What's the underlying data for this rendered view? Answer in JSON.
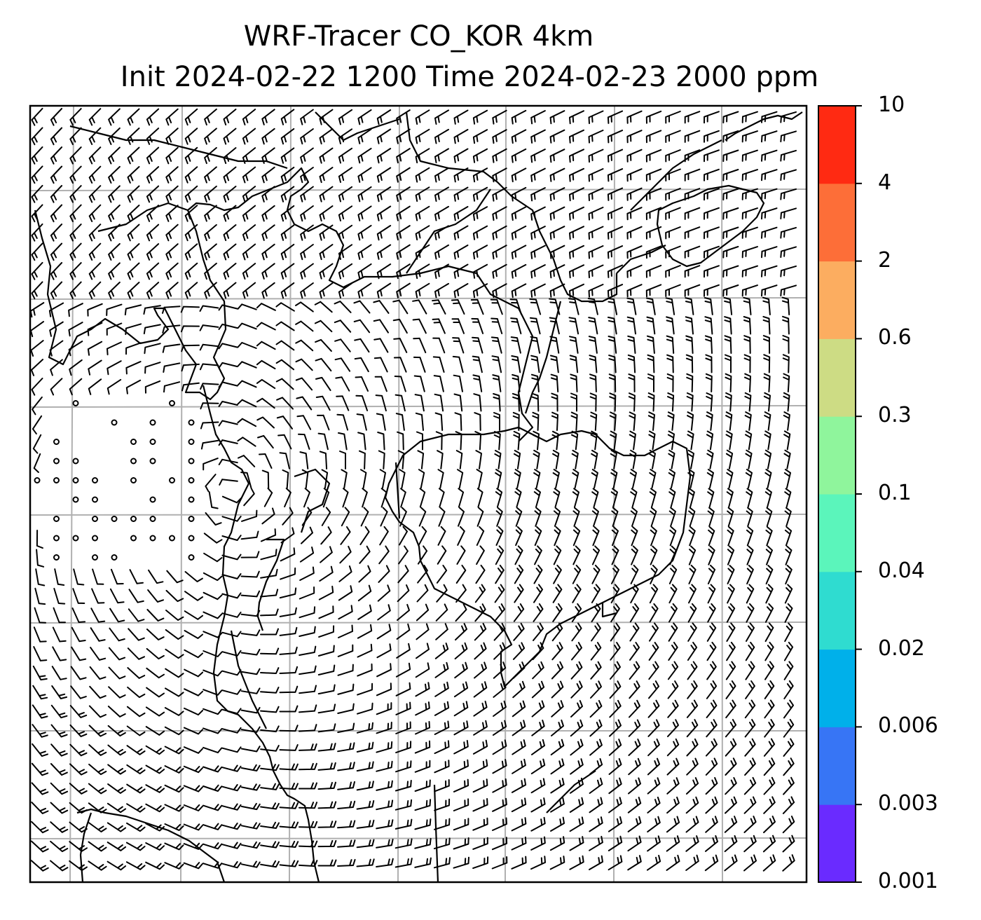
{
  "title": {
    "line1": "WRF-Tracer CO_KOR 4km",
    "line2": "Init 2024-02-22 1200 Time 2024-02-23 2000 ppm"
  },
  "colorbar": {
    "levels": [
      "0.001",
      "0.003",
      "0.006",
      "0.02",
      "0.04",
      "0.1",
      "0.3",
      "0.6",
      "2",
      "4",
      "10"
    ],
    "colors": [
      "#6a2bff",
      "#3775f5",
      "#00b0ea",
      "#2fdcd0",
      "#5bf5bb",
      "#8ff59c",
      "#cddc84",
      "#fcad60",
      "#fd6e38",
      "#ff2a12"
    ]
  },
  "map": {
    "field": "wind barbs",
    "background": "#ffffff",
    "coastline_color": "#000000",
    "gridline_color": "#b0b0b0"
  }
}
